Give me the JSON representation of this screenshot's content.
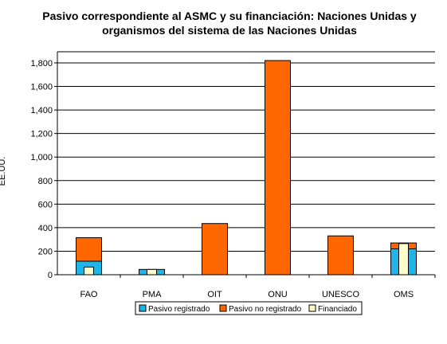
{
  "chart_data": {
    "type": "bar",
    "stacked": true,
    "title_lines": [
      "Pasivo correspondiente al ASMC y su financiación: Naciones Unidas y",
      "organismos del sistema de las Naciones Unidas"
    ],
    "ylabel": "EE.UU.",
    "ylim": [
      0,
      1800
    ],
    "yticks": [
      "0",
      "200",
      "400",
      "600",
      "800",
      "1,000",
      "1,200",
      "1,400",
      "1,600",
      "1,800"
    ],
    "ytick_values": [
      0,
      200,
      400,
      600,
      800,
      1000,
      1200,
      1400,
      1600,
      1800
    ],
    "grid": true,
    "legend_position": "bottom",
    "categories": [
      "FAO",
      "PMA",
      "OIT",
      "ONU",
      "UNESCO",
      "OMS"
    ],
    "series": [
      {
        "name": "Pasivo registrado",
        "values": [
          115,
          45,
          0,
          0,
          0,
          220
        ],
        "color": "#1fb5e8"
      },
      {
        "name": "Pasivo no registrado",
        "values": [
          200,
          0,
          435,
          1820,
          330,
          50
        ],
        "color": "#ff6600"
      },
      {
        "name": "Financiado",
        "values": [
          65,
          45,
          0,
          0,
          0,
          265
        ],
        "color": "#ffffcc"
      }
    ]
  }
}
